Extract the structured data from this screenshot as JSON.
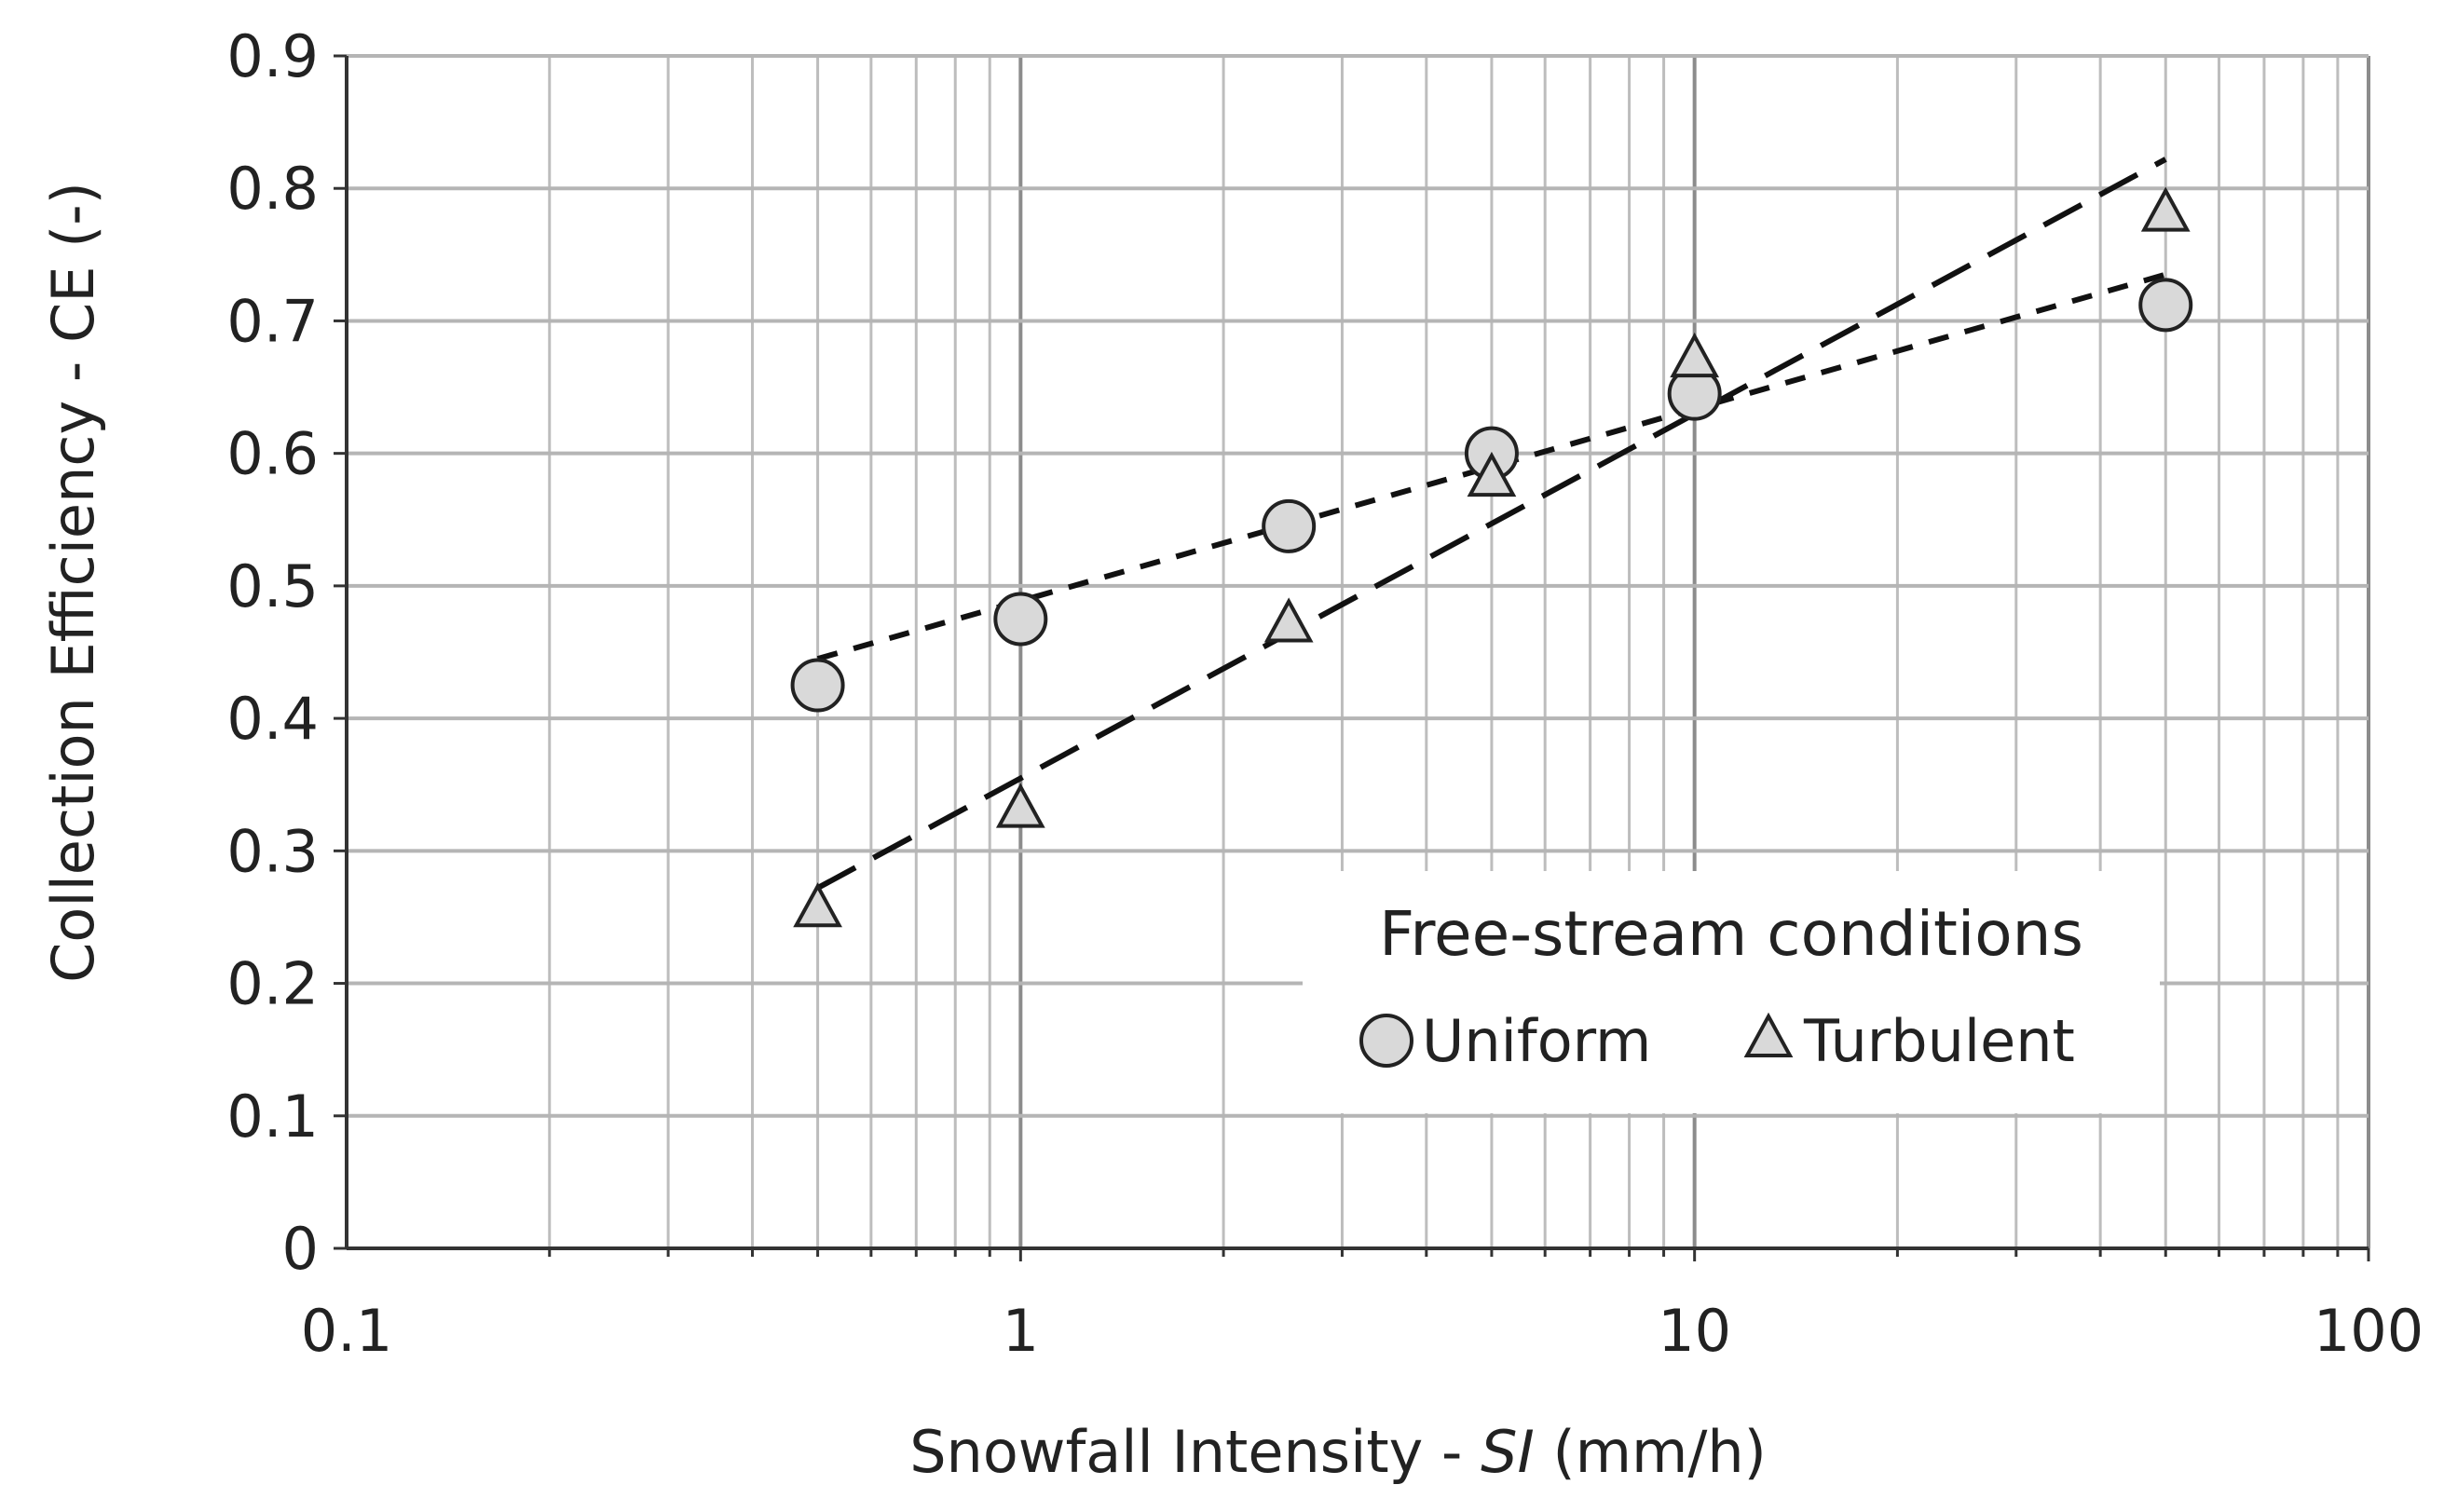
{
  "chart_data": {
    "type": "scatter",
    "title": "",
    "xlabel_prefix": "Snowfall Intensity - ",
    "xlabel_italic": "SI",
    "xlabel_suffix": " (mm/h)",
    "ylabel": "Collection Efficiency - CE (-)",
    "x_scale": "log",
    "xlim": [
      0.1,
      100
    ],
    "ylim": [
      0,
      0.9
    ],
    "x_ticks": [
      0.1,
      1,
      10,
      100
    ],
    "x_tick_labels": [
      "0.1",
      "1",
      "10",
      "100"
    ],
    "y_ticks": [
      0,
      0.1,
      0.2,
      0.3,
      0.4,
      0.5,
      0.6,
      0.7,
      0.8,
      0.9
    ],
    "y_tick_labels": [
      "0",
      "0.1",
      "0.2",
      "0.3",
      "0.4",
      "0.5",
      "0.6",
      "0.7",
      "0.8",
      "0.9"
    ],
    "grid": true,
    "legend": {
      "title": "Free-stream conditions",
      "placement": "lower-right"
    },
    "series": [
      {
        "name": "Uniform",
        "marker": "circle",
        "marker_color": "#d9d9d9",
        "x": [
          0.5,
          1,
          2.5,
          5,
          10,
          50
        ],
        "y": [
          0.425,
          0.475,
          0.545,
          0.6,
          0.645,
          0.712
        ],
        "trend": {
          "style": "short-dash",
          "x": [
            0.5,
            50
          ],
          "y": [
            0.445,
            0.735
          ]
        }
      },
      {
        "name": "Turbulent",
        "marker": "triangle",
        "marker_color": "#d9d9d9",
        "x": [
          0.5,
          1,
          2.5,
          5,
          10,
          50
        ],
        "y": [
          0.255,
          0.33,
          0.47,
          0.58,
          0.67,
          0.78
        ],
        "trend": {
          "style": "long-dash",
          "x": [
            0.5,
            50
          ],
          "y": [
            0.272,
            0.822
          ]
        }
      }
    ]
  }
}
